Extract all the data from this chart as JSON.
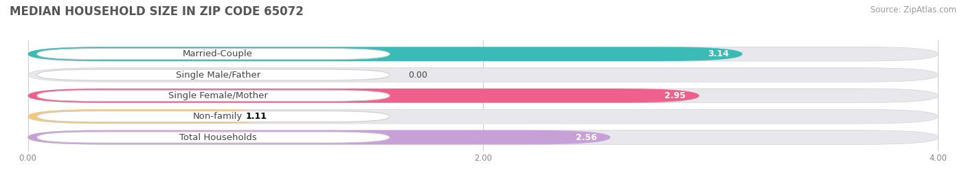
{
  "title": "MEDIAN HOUSEHOLD SIZE IN ZIP CODE 65072",
  "source": "Source: ZipAtlas.com",
  "categories": [
    "Married-Couple",
    "Single Male/Father",
    "Single Female/Mother",
    "Non-family",
    "Total Households"
  ],
  "values": [
    3.14,
    0.0,
    2.95,
    1.11,
    2.56
  ],
  "bar_colors": [
    "#3abbb5",
    "#a8bce8",
    "#f0608c",
    "#f5c87a",
    "#c8a0d8"
  ],
  "value_label_colors": [
    "white",
    "black",
    "white",
    "black",
    "white"
  ],
  "xlim_max": 4.0,
  "xticks": [
    0.0,
    2.0,
    4.0
  ],
  "xtick_labels": [
    "0.00",
    "2.00",
    "4.00"
  ],
  "background_color": "#ffffff",
  "bar_bg_color": "#e8e8ec",
  "title_fontsize": 12,
  "source_fontsize": 8.5,
  "value_fontsize": 9,
  "cat_fontsize": 9.5
}
